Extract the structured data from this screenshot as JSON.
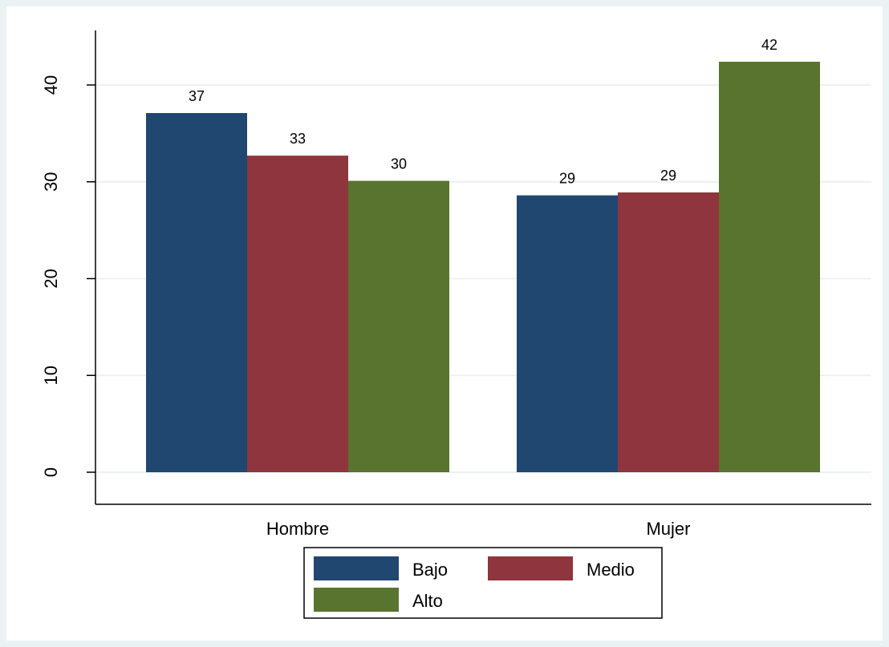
{
  "chart_data": {
    "type": "bar",
    "title": "",
    "xlabel": "",
    "ylabel": "",
    "categories": [
      "Hombre",
      "Mujer"
    ],
    "series": [
      {
        "name": "Bajo",
        "color": "#1f4770",
        "values": [
          37.1,
          28.6
        ]
      },
      {
        "name": "Medio",
        "color": "#8e353d",
        "values": [
          32.7,
          28.9
        ]
      },
      {
        "name": "Alto",
        "color": "#58742f",
        "values": [
          30.1,
          42.4
        ]
      }
    ],
    "data_labels": [
      [
        "37",
        "29"
      ],
      [
        "33",
        "29"
      ],
      [
        "30",
        "42"
      ]
    ],
    "ylim": [
      0,
      46.9
    ],
    "yticks": [
      0,
      10,
      20,
      30,
      40
    ],
    "grid": true,
    "legend": {
      "position": "bottom",
      "columns": 2,
      "entries": [
        "Bajo",
        "Medio",
        "Alto"
      ]
    },
    "colors": {
      "background": "#eaf2f3",
      "plot_area": "#ffffff",
      "grid": "#eaf2f3",
      "axis": "#000000"
    }
  }
}
